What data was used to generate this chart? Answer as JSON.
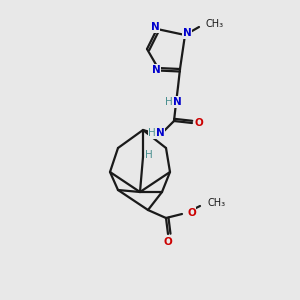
{
  "bg_color": "#e8e8e8",
  "bond_color": "#1a1a1a",
  "nitrogen_color": "#0000cc",
  "oxygen_color": "#cc0000",
  "nh_color": "#4a9090",
  "carbon_color": "#1a1a1a"
}
